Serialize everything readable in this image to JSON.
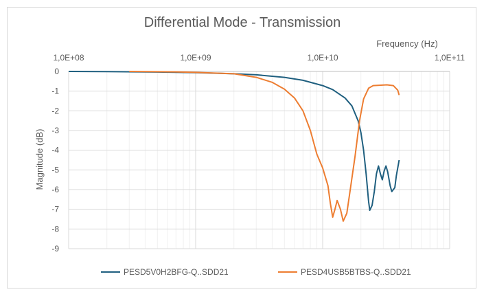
{
  "chart_data": {
    "type": "line",
    "title": "Differential Mode - Transmission",
    "xlabel": "Frequency (Hz)",
    "ylabel": "Magnitude (dB)",
    "xscale": "log",
    "xlim": [
      100000000,
      100000000000
    ],
    "ylim": [
      -9,
      0
    ],
    "x_axis_position": "top",
    "xtick_labels": [
      "1,0E+08",
      "1,0E+09",
      "1,0E+10",
      "1,0E+11"
    ],
    "ytick_labels": [
      "0",
      "-1",
      "-2",
      "-3",
      "-4",
      "-5",
      "-6",
      "-7",
      "-8",
      "-9"
    ],
    "grid": true,
    "legend_position": "bottom",
    "series": [
      {
        "name": "PESD5V0H2BFG-Q..SDD21",
        "color": "#1f5f7f",
        "points": [
          [
            100000000,
            0
          ],
          [
            200000000,
            -0.01
          ],
          [
            500000000,
            -0.03
          ],
          [
            1000000000,
            -0.06
          ],
          [
            2000000000,
            -0.12
          ],
          [
            3000000000,
            -0.17
          ],
          [
            5000000000,
            -0.3
          ],
          [
            7000000000,
            -0.45
          ],
          [
            10000000000,
            -0.72
          ],
          [
            12000000000,
            -0.92
          ],
          [
            15000000000,
            -1.35
          ],
          [
            17000000000,
            -1.75
          ],
          [
            19000000000,
            -2.5
          ],
          [
            20000000000,
            -3.1
          ],
          [
            21000000000,
            -4.0
          ],
          [
            22000000000,
            -5.2
          ],
          [
            23000000000,
            -6.6
          ],
          [
            23500000000,
            -7.05
          ],
          [
            24500000000,
            -6.8
          ],
          [
            25500000000,
            -6.1
          ],
          [
            26500000000,
            -5.2
          ],
          [
            27500000000,
            -4.8
          ],
          [
            28500000000,
            -5.2
          ],
          [
            29500000000,
            -5.5
          ],
          [
            30500000000,
            -5.05
          ],
          [
            31500000000,
            -4.8
          ],
          [
            32500000000,
            -5.1
          ],
          [
            34000000000,
            -5.8
          ],
          [
            35000000000,
            -6.1
          ],
          [
            37000000000,
            -5.9
          ],
          [
            38000000000,
            -5.3
          ],
          [
            40000000000,
            -4.5
          ]
        ]
      },
      {
        "name": "PESD4USB5BTBS-Q..SDD21",
        "color": "#ed7d31",
        "points": [
          [
            300000000,
            0
          ],
          [
            700000000,
            -0.02
          ],
          [
            1000000000,
            -0.05
          ],
          [
            2000000000,
            -0.12
          ],
          [
            3000000000,
            -0.3
          ],
          [
            4000000000,
            -0.55
          ],
          [
            5000000000,
            -0.9
          ],
          [
            6000000000,
            -1.35
          ],
          [
            7000000000,
            -2.0
          ],
          [
            8000000000,
            -3.0
          ],
          [
            9000000000,
            -4.2
          ],
          [
            10000000000,
            -4.9
          ],
          [
            11000000000,
            -5.8
          ],
          [
            11500000000,
            -6.7
          ],
          [
            12000000000,
            -7.4
          ],
          [
            12500000000,
            -7.0
          ],
          [
            13000000000,
            -6.55
          ],
          [
            13800000000,
            -7.0
          ],
          [
            14500000000,
            -7.6
          ],
          [
            15500000000,
            -7.2
          ],
          [
            16500000000,
            -6.0
          ],
          [
            18000000000,
            -4.3
          ],
          [
            19500000000,
            -2.5
          ],
          [
            21000000000,
            -1.4
          ],
          [
            23000000000,
            -0.85
          ],
          [
            25000000000,
            -0.72
          ],
          [
            28000000000,
            -0.7
          ],
          [
            32000000000,
            -0.68
          ],
          [
            36000000000,
            -0.72
          ],
          [
            39000000000,
            -0.95
          ],
          [
            40000000000,
            -1.2
          ]
        ]
      }
    ]
  }
}
